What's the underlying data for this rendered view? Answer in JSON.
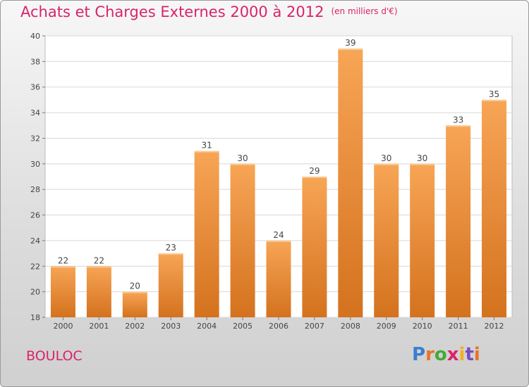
{
  "title": "Achats et Charges Externes 2000 à 2012",
  "unit_note": "(en milliers d'€)",
  "town": "BOULOC",
  "logo": {
    "text": "Proxiti",
    "colors": [
      "#3a7fd0",
      "#e8732a",
      "#46a83a",
      "#d8246a",
      "#f2b01e",
      "#7a4cc0",
      "#e8732a"
    ]
  },
  "colors": {
    "title": "#d8246a",
    "bar_top": "#f7a556",
    "bar_bottom": "#d4721e"
  },
  "chart_data": {
    "type": "bar",
    "categories": [
      "2000",
      "2001",
      "2002",
      "2003",
      "2004",
      "2005",
      "2006",
      "2007",
      "2008",
      "2009",
      "2010",
      "2011",
      "2012"
    ],
    "values": [
      22,
      22,
      20,
      23,
      31,
      30,
      24,
      29,
      39,
      30,
      30,
      33,
      35
    ],
    "ylim": [
      18,
      40
    ],
    "yticks": [
      18,
      20,
      22,
      24,
      26,
      28,
      30,
      32,
      34,
      36,
      38,
      40
    ],
    "grid": true,
    "legend": "none"
  }
}
